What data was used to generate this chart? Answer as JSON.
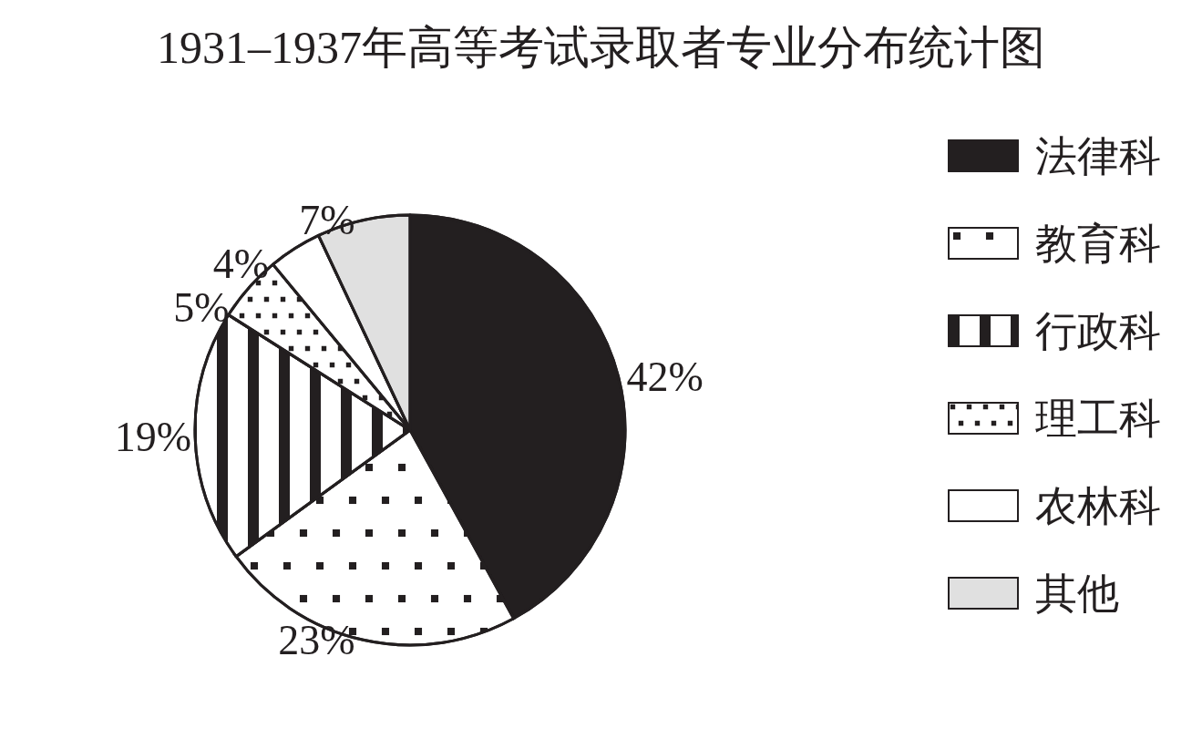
{
  "chart_data": {
    "type": "pie",
    "title": "1931–1937年高等考试录取者专业分布统计图",
    "categories": [
      "法律科",
      "教育科",
      "行政科",
      "理工科",
      "农林科",
      "其他"
    ],
    "values": [
      42,
      23,
      19,
      5,
      4,
      7
    ],
    "value_labels": [
      "42%",
      "23%",
      "19%",
      "5%",
      "4%",
      "7%"
    ],
    "colors": [
      "#231f20",
      "#ffffff",
      "#ffffff",
      "#ffffff",
      "#ffffff",
      "#e0e0e0"
    ],
    "legend": "right"
  }
}
